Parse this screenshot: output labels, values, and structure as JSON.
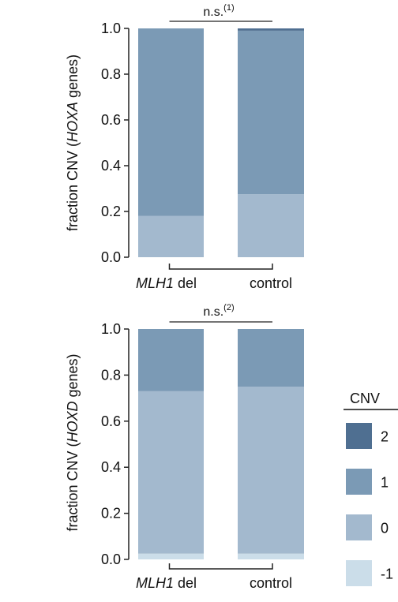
{
  "chart_data": [
    {
      "type": "bar",
      "stacked": true,
      "categories": [
        "MLH1 del",
        "control"
      ],
      "category_labels": [
        {
          "italic": "MLH1",
          "rest": " del"
        },
        {
          "italic": "",
          "rest": "control"
        }
      ],
      "ylabel": {
        "pre": "fraction CNV (",
        "italic": "HOXA",
        "post": " genes)"
      },
      "ylim": [
        0,
        1
      ],
      "yticks": [
        "0.0",
        "0.2",
        "0.4",
        "0.6",
        "0.8",
        "1.0"
      ],
      "series": [
        {
          "name": "-1",
          "values": [
            0.0,
            0.0
          ]
        },
        {
          "name": "0",
          "values": [
            0.18,
            0.275
          ]
        },
        {
          "name": "1",
          "values": [
            0.82,
            0.715
          ]
        },
        {
          "name": "2",
          "values": [
            0.0,
            0.01
          ]
        }
      ],
      "significance": {
        "text": "n.s.",
        "sup": "(1)"
      }
    },
    {
      "type": "bar",
      "stacked": true,
      "categories": [
        "MLH1 del",
        "control"
      ],
      "category_labels": [
        {
          "italic": "MLH1",
          "rest": " del"
        },
        {
          "italic": "",
          "rest": "control"
        }
      ],
      "ylabel": {
        "pre": "fraction CNV (",
        "italic": "HOXD",
        "post": " genes)"
      },
      "ylim": [
        0,
        1
      ],
      "yticks": [
        "0.0",
        "0.2",
        "0.4",
        "0.6",
        "0.8",
        "1.0"
      ],
      "series": [
        {
          "name": "-1",
          "values": [
            0.025,
            0.025
          ]
        },
        {
          "name": "0",
          "values": [
            0.705,
            0.725
          ]
        },
        {
          "name": "1",
          "values": [
            0.27,
            0.25
          ]
        },
        {
          "name": "2",
          "values": [
            0.0,
            0.0
          ]
        }
      ],
      "significance": {
        "text": "n.s.",
        "sup": "(2)"
      }
    }
  ],
  "legend": {
    "title": "CNV",
    "position": "right",
    "entries": [
      {
        "label": "2",
        "color": "#4f6f91"
      },
      {
        "label": "1",
        "color": "#7b9ab5"
      },
      {
        "label": "0",
        "color": "#a3b9ce"
      },
      {
        "label": "-1",
        "color": "#cbdde9"
      }
    ]
  },
  "colors": {
    "-1": "#cbdde9",
    "0": "#a3b9ce",
    "1": "#7b9ab5",
    "2": "#4f6f91"
  }
}
